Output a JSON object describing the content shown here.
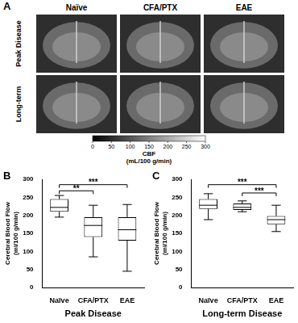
{
  "panel_a": {
    "label": "A",
    "columns": [
      "Naïve",
      "CFA/PTX",
      "EAE"
    ],
    "rows": [
      "Peak Disease",
      "Long-term"
    ],
    "colorbar": {
      "title": [
        "CBF",
        "(mL/100 g/min)"
      ],
      "range": [
        0,
        300
      ],
      "ticks": [
        0,
        50,
        100,
        150,
        200,
        250,
        300
      ]
    }
  },
  "chart_data": [
    {
      "panel": "B",
      "type": "box",
      "xlabel": "Peak Disease",
      "ylabel": [
        "Cerebral Blood Flow",
        "(ml/100 g/min)"
      ],
      "categories": [
        "Naïve",
        "CFA/PTX",
        "EAE"
      ],
      "boxes": [
        {
          "min": 195,
          "q1": 210,
          "median": 222,
          "q3": 245,
          "max": 255
        },
        {
          "min": 85,
          "q1": 140,
          "median": 172,
          "q3": 195,
          "max": 228
        },
        {
          "min": 45,
          "q1": 130,
          "median": 160,
          "q3": 195,
          "max": 230
        }
      ],
      "color": "#000000",
      "ylim": [
        0,
        300
      ],
      "yticks": [
        0,
        50,
        100,
        150,
        200,
        250,
        300
      ],
      "grid": false,
      "annotations": [
        {
          "from": "Naïve",
          "to": "CFA/PTX",
          "label": "**",
          "y": 268
        },
        {
          "from": "Naïve",
          "to": "EAE",
          "label": "***",
          "y": 285
        }
      ]
    },
    {
      "panel": "C",
      "type": "box",
      "xlabel": "Long-term Disease",
      "ylabel": [
        "Cerebral Blood Flow",
        "(ml/100 g/min)"
      ],
      "categories": [
        "Naïve",
        "CFA/PTX",
        "EAE"
      ],
      "boxes": [
        {
          "min": 188,
          "q1": 218,
          "median": 228,
          "q3": 245,
          "max": 260
        },
        {
          "min": 210,
          "q1": 215,
          "median": 222,
          "q3": 233,
          "max": 240
        },
        {
          "min": 155,
          "q1": 175,
          "median": 188,
          "q3": 198,
          "max": 228
        }
      ],
      "color": "#000000",
      "ylim": [
        0,
        300
      ],
      "yticks": [
        0,
        50,
        100,
        150,
        200,
        250,
        300
      ],
      "grid": false,
      "annotations": [
        {
          "from": "Naïve",
          "to": "EAE",
          "label": "***",
          "y": 285
        },
        {
          "from": "CFA/PTX",
          "to": "EAE",
          "label": "***",
          "y": 262
        }
      ]
    }
  ]
}
